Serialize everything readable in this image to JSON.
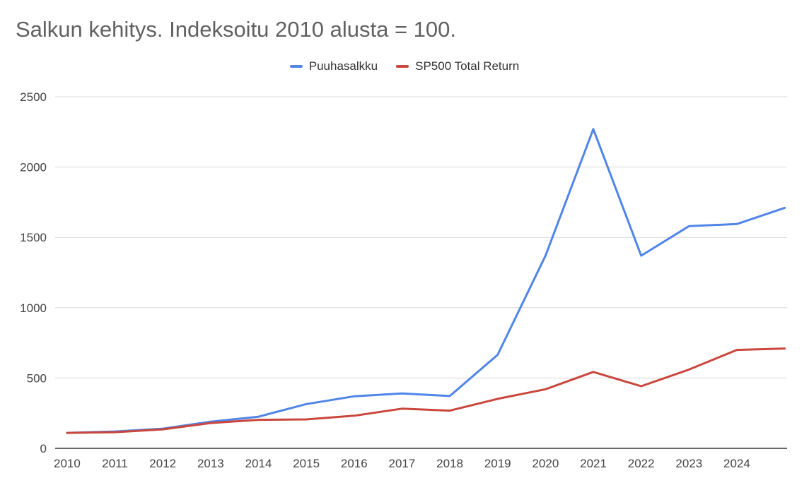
{
  "chart_data": {
    "type": "line",
    "title": "Salkun kehitys. Indeksoitu 2010 alusta = 100.",
    "xlabel": "",
    "ylabel": "",
    "x_ticks": [
      "2010",
      "2011",
      "2012",
      "2013",
      "2014",
      "2015",
      "2016",
      "2017",
      "2018",
      "2019",
      "2020",
      "2021",
      "2022",
      "2023",
      "2024"
    ],
    "y_ticks": [
      "0",
      "500",
      "1000",
      "1500",
      "2000",
      "2500"
    ],
    "ylim": [
      0,
      2500
    ],
    "grid": "horizontal",
    "legend_position": "top",
    "series": [
      {
        "name": "Puuhasalkku",
        "color": "#5085e8",
        "x": [
          2010,
          2011,
          2012,
          2013,
          2014,
          2015,
          2016,
          2017,
          2018,
          2019,
          2020,
          2021,
          2022,
          2023,
          2024,
          2025
        ],
        "values": [
          110,
          120,
          140,
          190,
          225,
          315,
          370,
          390,
          372,
          665,
          1370,
          2270,
          1370,
          1580,
          1595,
          1710
        ]
      },
      {
        "name": "SP500 Total Return",
        "color": "#c9473d",
        "x": [
          2010,
          2011,
          2012,
          2013,
          2014,
          2015,
          2016,
          2017,
          2018,
          2019,
          2020,
          2021,
          2022,
          2023,
          2024,
          2025
        ],
        "values": [
          110,
          115,
          135,
          180,
          203,
          206,
          232,
          282,
          268,
          352,
          420,
          543,
          442,
          560,
          700,
          710
        ]
      }
    ]
  }
}
